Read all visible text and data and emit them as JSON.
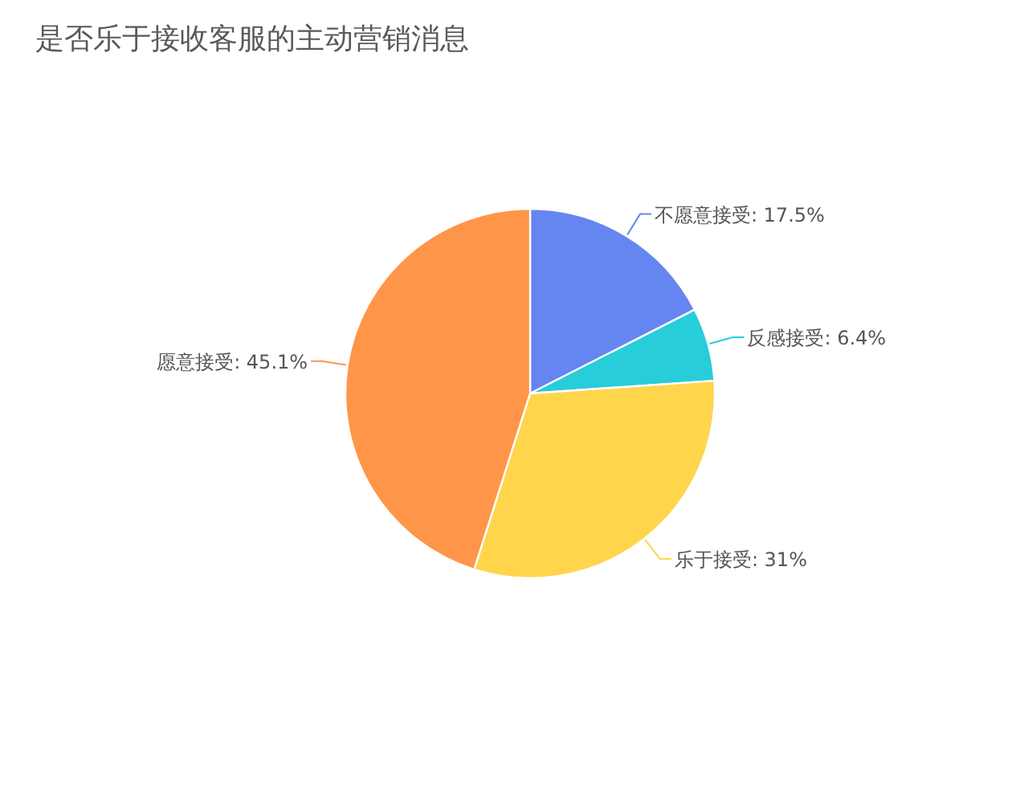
{
  "chart_data": {
    "type": "pie",
    "title": "是否乐于接收客服的主动营销消息",
    "categories": [
      "不愿意接受",
      "反感接受",
      "乐于接受",
      "愿意接受"
    ],
    "values": [
      17.5,
      6.4,
      31,
      45.1
    ],
    "colors": [
      "#6586f0",
      "#27cdd9",
      "#ffd54c",
      "#ff9549"
    ],
    "value_labels": [
      "17.5%",
      "6.4%",
      "31%",
      "45.1%"
    ]
  }
}
